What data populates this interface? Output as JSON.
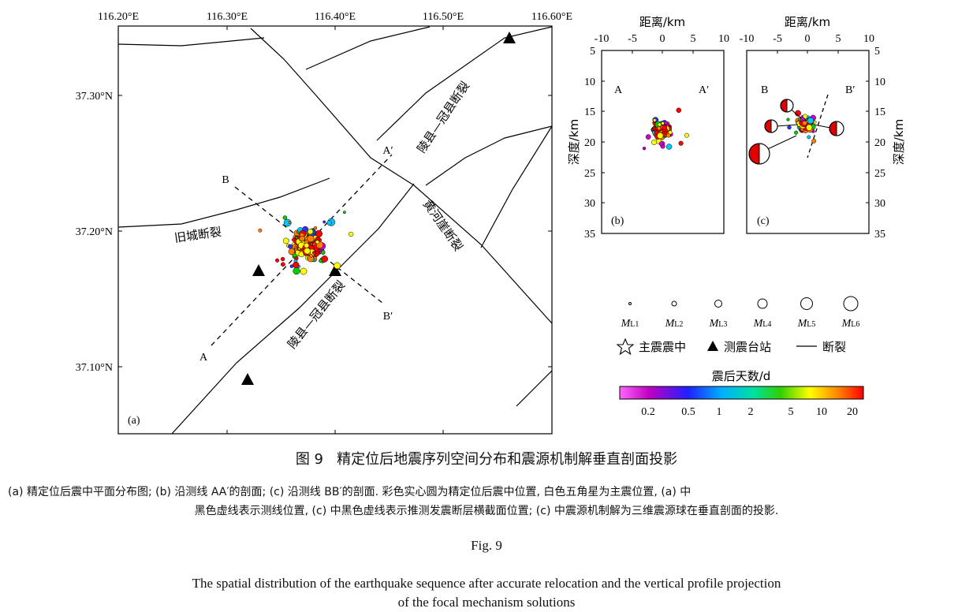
{
  "figure": {
    "number": "图 9",
    "title_cn": "精定位后地震序列空间分布和震源机制解垂直剖面投影",
    "note_line1": "(a) 精定位后震中平面分布图; (b) 沿测线 AA′的剖面; (c) 沿测线 BB′的剖面. 彩色实心圆为精定位后震中位置, 白色五角星为主震位置, (a) 中",
    "note_line2": "黑色虚线表示测线位置, (c) 中黑色虚线表示推测发震断层横截面位置; (c) 中震源机制解为三维震源球在垂直剖面的投影.",
    "fig_en_label": "Fig. 9",
    "title_en_line1": "The spatial distribution of the earthquake sequence after accurate relocation and the vertical profile projection",
    "title_en_line2": "of the focal mechanism solutions"
  },
  "panel_a": {
    "label": "(a)",
    "x_ticks": [
      "116.20°E",
      "116.30°E",
      "116.40°E",
      "116.50°E",
      "116.60°E"
    ],
    "y_ticks": [
      "37.30°N",
      "37.20°N",
      "37.10°N"
    ],
    "fault_labels": [
      "陵县—冠县断裂",
      "黄河崖断裂",
      "旧城断裂",
      "陵县—冠县断裂"
    ],
    "profile_labels": [
      "A",
      "A′",
      "B",
      "B′"
    ]
  },
  "panel_b": {
    "label": "(b)",
    "xlabel": "距离/km",
    "ylabel": "深度/km",
    "x_ticks": [
      "-10",
      "-5",
      "0",
      "5",
      "10"
    ],
    "y_ticks": [
      "5",
      "10",
      "15",
      "20",
      "25",
      "30",
      "35"
    ],
    "end_labels": [
      "A",
      "A′"
    ]
  },
  "panel_c": {
    "label": "(c)",
    "xlabel": "距离/km",
    "ylabel": "深度/km",
    "x_ticks": [
      "-10",
      "-5",
      "0",
      "5",
      "10"
    ],
    "y_ticks": [
      "5",
      "10",
      "15",
      "20",
      "25",
      "30",
      "35"
    ],
    "end_labels": [
      "B",
      "B′"
    ]
  },
  "legend": {
    "magnitudes": [
      "M",
      "L1",
      "L2",
      "L3",
      "L4",
      "L5",
      "L6"
    ],
    "mag_labels": [
      "ML1",
      "ML2",
      "ML3",
      "ML4",
      "ML5",
      "ML6"
    ],
    "symbols": [
      "主震震中",
      "测震台站",
      "断裂"
    ],
    "colorbar_title": "震后天数/d",
    "colorbar_ticks": [
      "0.2",
      "0.5",
      "1",
      "2",
      "5",
      "10",
      "20"
    ],
    "colors": [
      "#d000d0",
      "#3030ff",
      "#00c8ff",
      "#00d000",
      "#ffff00",
      "#ff8000",
      "#ff0000"
    ]
  }
}
